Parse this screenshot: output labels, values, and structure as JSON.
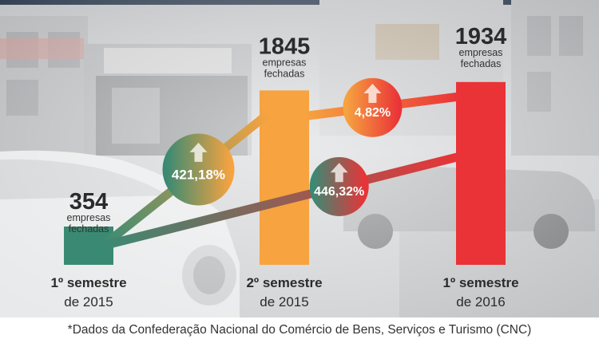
{
  "chart_data": {
    "type": "bar",
    "categories": [
      {
        "line1": "1º semestre",
        "line2": "de 2015"
      },
      {
        "line1": "2º semestre",
        "line2": "de 2015"
      },
      {
        "line1": "1º semestre",
        "line2": "de 2016"
      }
    ],
    "values": [
      354,
      1845,
      1934
    ],
    "value_labels": [
      "354",
      "1845",
      "1934"
    ],
    "unit_line1": "empresas",
    "unit_line2": "fechadas",
    "colors": [
      "#3a8a73",
      "#f6a340",
      "#ea3337"
    ],
    "changes": [
      {
        "from": 0,
        "to": 1,
        "label": "421,18%",
        "color_from": "#3a8a73",
        "color_to": "#f6a340"
      },
      {
        "from": 1,
        "to": 2,
        "label": "4,82%",
        "color_from": "#f6a340",
        "color_to": "#ea3337"
      },
      {
        "from": 0,
        "to": 2,
        "label": "446,32%",
        "color_from": "#3a8a73",
        "color_to": "#ea3337"
      }
    ],
    "ylim": [
      0,
      2000
    ]
  },
  "footnote": "*Dados da Confederação Nacional do Comércio de Bens, Serviços e Turismo (CNC)"
}
